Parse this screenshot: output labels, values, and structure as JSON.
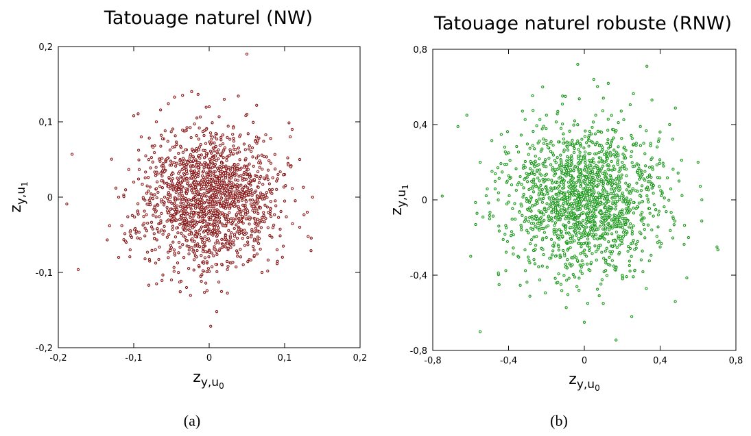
{
  "chart_data": [
    {
      "type": "scatter",
      "title": "Tatouage naturel (NW)",
      "xlabel_main": "z",
      "xlabel_sub": "y,u",
      "xlabel_subsub": "0",
      "ylabel_main": "z",
      "ylabel_sub": "y,u",
      "ylabel_subsub": "1",
      "xlim": [
        -0.2,
        0.2
      ],
      "ylim": [
        -0.2,
        0.2
      ],
      "xticks": [
        -0.2,
        -0.1,
        0,
        0.1,
        0.2
      ],
      "yticks": [
        -0.2,
        -0.1,
        0,
        0.1,
        0.2
      ],
      "xticklabels": [
        "-0,2",
        "-0,1",
        "0",
        "0,1",
        "0,2"
      ],
      "yticklabels": [
        "-0,2",
        "-0,1",
        "0",
        "0,1",
        "0,2"
      ],
      "grid": false,
      "color": "#8b1a1a",
      "caption": "(a)",
      "spread": 0.045,
      "points": [
        [
          -0.01,
          0.0
        ],
        [
          0.0,
          0.01
        ],
        [
          0.01,
          -0.01
        ],
        [
          0.02,
          0.02
        ],
        [
          -0.02,
          -0.02
        ],
        [
          0.03,
          0.0
        ],
        [
          -0.03,
          0.01
        ],
        [
          0.0,
          -0.03
        ],
        [
          0.05,
          0.03
        ],
        [
          -0.05,
          -0.03
        ],
        [
          0.06,
          -0.02
        ],
        [
          -0.06,
          0.04
        ],
        [
          0.04,
          0.06
        ],
        [
          -0.04,
          -0.06
        ],
        [
          0.08,
          0.01
        ],
        [
          -0.08,
          -0.01
        ],
        [
          0.1,
          0.03
        ],
        [
          -0.1,
          0.02
        ],
        [
          0.12,
          0.05
        ],
        [
          -0.12,
          -0.08
        ],
        [
          0.137,
          0.0
        ],
        [
          -0.132,
          -0.038
        ],
        [
          0.09,
          -0.07
        ],
        [
          -0.09,
          0.08
        ],
        [
          0.05,
          0.11
        ],
        [
          -0.05,
          -0.11
        ],
        [
          0.07,
          -0.1
        ],
        [
          -0.07,
          0.1
        ],
        [
          0.0,
          0.12
        ],
        [
          0.01,
          -0.152
        ],
        [
          0.05,
          0.19
        ],
        [
          -0.1,
          0.108
        ],
        [
          -0.08,
          -0.117
        ],
        [
          0.12,
          -0.04
        ],
        [
          -0.11,
          -0.06
        ],
        [
          0.02,
          0.13
        ],
        [
          -0.03,
          -0.12
        ],
        [
          0.11,
          0.09
        ],
        [
          -0.12,
          0.0
        ],
        [
          0.13,
          -0.02
        ]
      ]
    },
    {
      "type": "scatter",
      "title": "Tatouage naturel robuste (RNW)",
      "xlabel_main": "z",
      "xlabel_sub": "y,u",
      "xlabel_subsub": "0",
      "ylabel_main": "z",
      "ylabel_sub": "y,u",
      "ylabel_subsub": "1",
      "xlim": [
        -0.8,
        0.8
      ],
      "ylim": [
        -0.8,
        0.8
      ],
      "xticks": [
        -0.8,
        -0.4,
        0,
        0.4,
        0.8
      ],
      "yticks": [
        -0.8,
        -0.4,
        0,
        0.4,
        0.8
      ],
      "xticklabels": [
        "-0,8",
        "-0,4",
        "0",
        "0,4",
        "0,8"
      ],
      "yticklabels": [
        "-0,8",
        "-0,4",
        "0",
        "0,4",
        "0,8"
      ],
      "grid": false,
      "color": "#1a9a1a",
      "caption": "(b)",
      "spread": 0.2,
      "points": [
        [
          0.0,
          0.0
        ],
        [
          0.05,
          -0.05
        ],
        [
          -0.05,
          0.05
        ],
        [
          0.1,
          0.1
        ],
        [
          -0.1,
          -0.1
        ],
        [
          0.15,
          -0.02
        ],
        [
          -0.15,
          0.03
        ],
        [
          0.2,
          0.2
        ],
        [
          -0.2,
          -0.2
        ],
        [
          0.25,
          -0.15
        ],
        [
          -0.25,
          0.15
        ],
        [
          0.3,
          0.05
        ],
        [
          -0.3,
          -0.05
        ],
        [
          0.35,
          0.3
        ],
        [
          -0.35,
          -0.3
        ],
        [
          0.4,
          -0.25
        ],
        [
          -0.4,
          0.25
        ],
        [
          0.5,
          0.1
        ],
        [
          -0.5,
          -0.1
        ],
        [
          0.6,
          0.2
        ],
        [
          -0.6,
          -0.3
        ],
        [
          0.7,
          -0.25
        ],
        [
          -0.75,
          0.02
        ],
        [
          0.33,
          0.71
        ],
        [
          -0.55,
          -0.7
        ],
        [
          0.05,
          0.64
        ],
        [
          -0.22,
          0.6
        ],
        [
          0.25,
          -0.62
        ],
        [
          0.48,
          -0.54
        ],
        [
          -0.62,
          0.45
        ],
        [
          0.2,
          -0.4
        ],
        [
          -0.2,
          0.45
        ],
        [
          0.45,
          0.4
        ],
        [
          -0.45,
          -0.45
        ],
        [
          0.1,
          -0.55
        ],
        [
          -0.1,
          0.55
        ],
        [
          0.55,
          -0.2
        ],
        [
          -0.55,
          0.2
        ],
        [
          0.0,
          -0.65
        ],
        [
          0.62,
          0.0
        ]
      ]
    }
  ]
}
